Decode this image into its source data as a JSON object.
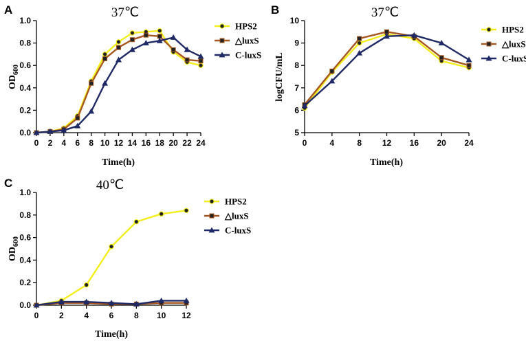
{
  "colors": {
    "HPS2": "#f2ee1a",
    "dluxS": "#a5571f",
    "CluxS": "#1f2a66"
  },
  "chart_data": [
    {
      "id": "A",
      "panel_label": "A",
      "type": "line",
      "title": "37℃",
      "xlabel": "Time(h)",
      "ylabel": "OD",
      "ylabel_sub": "600",
      "xlim": [
        0,
        24
      ],
      "ylim": [
        0,
        1.0
      ],
      "xticks": [
        "0",
        "2",
        "4",
        "6",
        "8",
        "10",
        "12",
        "14",
        "16",
        "18",
        "20",
        "22",
        "24"
      ],
      "yticks": [
        "0.0",
        "0.2",
        "0.4",
        "0.6",
        "0.8",
        "1.0"
      ],
      "x": [
        0,
        2,
        4,
        6,
        8,
        10,
        12,
        14,
        16,
        18,
        20,
        22,
        24
      ],
      "legend_position": "right",
      "series": [
        {
          "name": "HPS2",
          "key": "HPS2",
          "values": [
            0.0,
            0.01,
            0.04,
            0.15,
            0.46,
            0.7,
            0.81,
            0.89,
            0.9,
            0.91,
            0.72,
            0.63,
            0.6
          ]
        },
        {
          "name": "△luxS",
          "key": "dluxS",
          "values": [
            0.0,
            0.01,
            0.03,
            0.13,
            0.44,
            0.66,
            0.76,
            0.83,
            0.87,
            0.86,
            0.74,
            0.65,
            0.64
          ]
        },
        {
          "name": "C-luxS",
          "key": "CluxS",
          "values": [
            0.0,
            0.01,
            0.02,
            0.06,
            0.19,
            0.44,
            0.65,
            0.74,
            0.8,
            0.82,
            0.85,
            0.74,
            0.68
          ]
        }
      ]
    },
    {
      "id": "B",
      "panel_label": "B",
      "type": "line",
      "title": "37℃",
      "xlabel": "Time(h)",
      "ylabel": "logCFU/mL",
      "ylabel_sub": "",
      "xlim": [
        0,
        24
      ],
      "ylim": [
        5,
        10
      ],
      "xticks": [
        "0",
        "4",
        "8",
        "12",
        "16",
        "20",
        "24"
      ],
      "yticks": [
        "5",
        "6",
        "7",
        "8",
        "9",
        "10"
      ],
      "x": [
        0,
        4,
        8,
        12,
        16,
        20,
        24
      ],
      "legend_position": "right",
      "series": [
        {
          "name": "HPS2",
          "key": "HPS2",
          "values": [
            6.1,
            7.7,
            9.0,
            9.4,
            9.2,
            8.2,
            7.9
          ]
        },
        {
          "name": "△luxS",
          "key": "dluxS",
          "values": [
            6.25,
            7.75,
            9.2,
            9.5,
            9.3,
            8.35,
            8.0
          ]
        },
        {
          "name": "C-luxS",
          "key": "CluxS",
          "values": [
            6.2,
            7.3,
            8.55,
            9.3,
            9.35,
            9.0,
            8.25
          ]
        }
      ]
    },
    {
      "id": "C",
      "panel_label": "C",
      "type": "line",
      "title": "40℃",
      "xlabel": "Time(h)",
      "ylabel": "OD",
      "ylabel_sub": "600",
      "xlim": [
        0,
        12
      ],
      "ylim": [
        0,
        1.0
      ],
      "xticks": [
        "0",
        "2",
        "4",
        "6",
        "8",
        "10",
        "12"
      ],
      "yticks": [
        "0.0",
        "0.2",
        "0.4",
        "0.6",
        "0.8",
        "1.0"
      ],
      "x": [
        0,
        2,
        4,
        6,
        8,
        10,
        12
      ],
      "legend_position": "right",
      "series": [
        {
          "name": "HPS2",
          "key": "HPS2",
          "values": [
            0.0,
            0.04,
            0.18,
            0.52,
            0.74,
            0.81,
            0.84
          ]
        },
        {
          "name": "△luxS",
          "key": "dluxS",
          "values": [
            0.0,
            0.02,
            0.02,
            0.01,
            0.01,
            0.02,
            0.02
          ]
        },
        {
          "name": "C-luxS",
          "key": "CluxS",
          "values": [
            0.0,
            0.03,
            0.03,
            0.02,
            0.01,
            0.04,
            0.04
          ]
        }
      ]
    }
  ]
}
